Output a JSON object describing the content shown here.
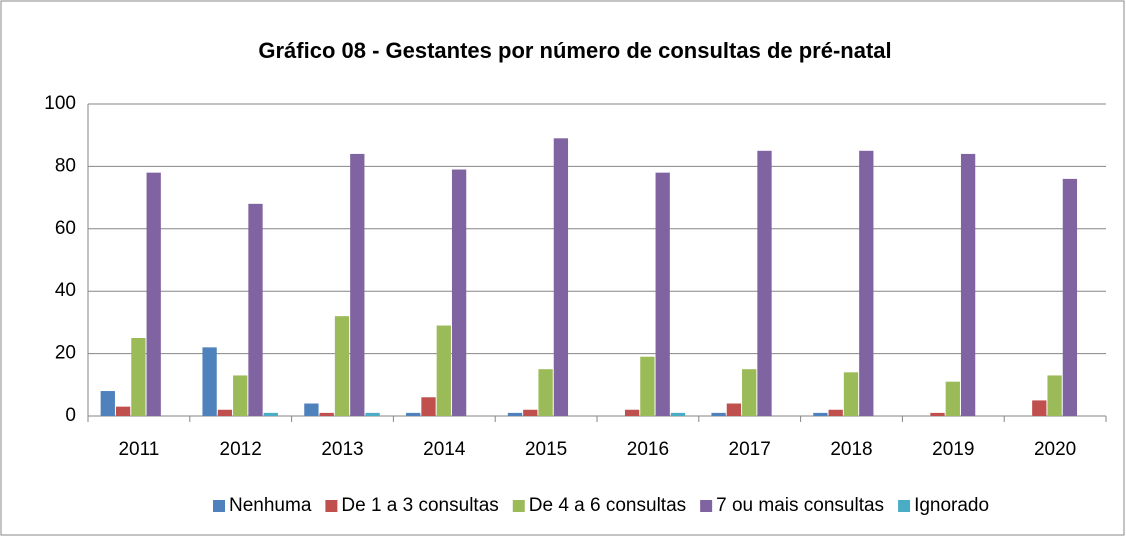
{
  "chart_data": {
    "type": "bar",
    "title": "Gráfico 08 - Gestantes por número de consultas de pré-natal",
    "categories": [
      "2011",
      "2012",
      "2013",
      "2014",
      "2015",
      "2016",
      "2017",
      "2018",
      "2019",
      "2020"
    ],
    "series": [
      {
        "name": "Nenhuma",
        "color": "#4f81bd",
        "values": [
          8,
          22,
          4,
          1,
          1,
          0,
          1,
          1,
          0,
          0
        ]
      },
      {
        "name": "De 1 a 3 consultas",
        "color": "#c0504d",
        "values": [
          3,
          2,
          1,
          6,
          2,
          2,
          4,
          2,
          1,
          5
        ]
      },
      {
        "name": "De 4 a 6 consultas",
        "color": "#9bbb59",
        "values": [
          25,
          13,
          32,
          29,
          15,
          19,
          15,
          14,
          11,
          13
        ]
      },
      {
        "name": "7 ou mais consultas",
        "color": "#8064a2",
        "values": [
          78,
          68,
          84,
          79,
          89,
          78,
          85,
          85,
          84,
          76
        ]
      },
      {
        "name": "Ignorado",
        "color": "#4bacc6",
        "values": [
          0,
          1,
          1,
          0,
          0,
          1,
          0,
          0,
          0,
          0
        ]
      }
    ],
    "ylim": [
      0,
      100
    ],
    "yticks": [
      0,
      20,
      40,
      60,
      80,
      100
    ],
    "grid": true,
    "legend": "bottom"
  }
}
